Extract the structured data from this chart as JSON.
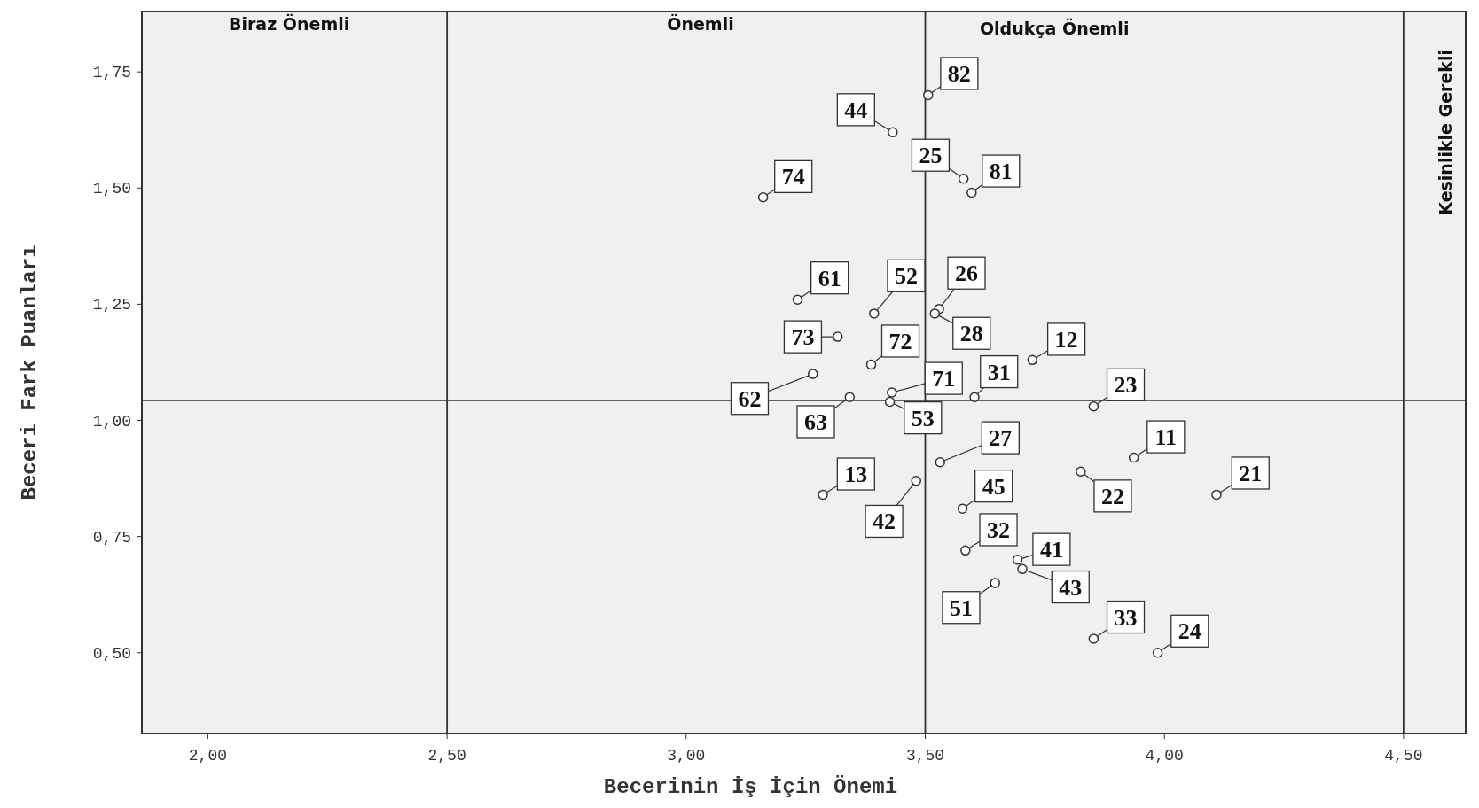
{
  "chart_data": {
    "type": "scatter",
    "xlabel": "Becerinin İş İçin Önemi",
    "ylabel": "Beceri Fark Puanları",
    "xlim": [
      1.862,
      4.63
    ],
    "ylim": [
      0.326,
      1.88
    ],
    "xticks": [
      {
        "value": 2,
        "label": "2,00"
      },
      {
        "value": 2.5,
        "label": "2,50"
      },
      {
        "value": 3,
        "label": "3,00"
      },
      {
        "value": 3.5,
        "label": "3,50"
      },
      {
        "value": 4,
        "label": "4,00"
      },
      {
        "value": 4.5,
        "label": "4,50"
      }
    ],
    "yticks": [
      {
        "value": 0.5,
        "label": "0,50"
      },
      {
        "value": 0.75,
        "label": "0,75"
      },
      {
        "value": 1,
        "label": "1,00"
      },
      {
        "value": 1.25,
        "label": "1,25"
      },
      {
        "value": 1.5,
        "label": "1,50"
      },
      {
        "value": 1.75,
        "label": "1,75"
      }
    ],
    "grid": false,
    "marker": "circle",
    "series": [
      {
        "color": "#333333",
        "x": [
          3.506,
          3.432,
          3.58,
          3.597,
          3.161,
          3.233,
          3.393,
          3.529,
          3.52,
          3.317,
          3.387,
          3.724,
          3.265,
          3.43,
          3.603,
          3.342,
          3.426,
          3.852,
          3.936,
          3.531,
          3.825,
          4.109,
          3.286,
          3.481,
          3.578,
          3.584,
          3.693,
          3.703,
          3.646,
          3.852,
          3.986
        ],
        "values": [
          1.7,
          1.62,
          1.52,
          1.49,
          1.48,
          1.26,
          1.23,
          1.24,
          1.23,
          1.18,
          1.12,
          1.13,
          1.1,
          1.06,
          1.05,
          1.05,
          1.04,
          1.03,
          0.92,
          0.91,
          0.89,
          0.84,
          0.84,
          0.87,
          0.81,
          0.72,
          0.7,
          0.68,
          0.65,
          0.53,
          0.5
        ]
      }
    ],
    "ref_lines": [
      {
        "axis": "x",
        "value": 2.5,
        "color": "#333333"
      },
      {
        "axis": "x",
        "value": 3.5,
        "color": "#333333"
      },
      {
        "axis": "x",
        "value": 4.5,
        "color": "#333333"
      },
      {
        "axis": "y",
        "value": 1.043,
        "color": "#333333"
      }
    ],
    "annotations": [
      "Biraz Önemli",
      "Önemli",
      "Oldukça Önemli",
      "Kesinlikle Gerekli",
      {
        "text": "82",
        "x": 3.506,
        "y": 1.7
      },
      {
        "text": "44",
        "x": 3.432,
        "y": 1.62
      },
      {
        "text": "25",
        "x": 3.58,
        "y": 1.52
      },
      {
        "text": "81",
        "x": 3.597,
        "y": 1.49
      },
      {
        "text": "74",
        "x": 3.161,
        "y": 1.48
      },
      {
        "text": "61",
        "x": 3.233,
        "y": 1.26
      },
      {
        "text": "52",
        "x": 3.393,
        "y": 1.23
      },
      {
        "text": "26",
        "x": 3.529,
        "y": 1.24
      },
      {
        "text": "28",
        "x": 3.52,
        "y": 1.23
      },
      {
        "text": "73",
        "x": 3.317,
        "y": 1.18
      },
      {
        "text": "72",
        "x": 3.387,
        "y": 1.12
      },
      {
        "text": "12",
        "x": 3.724,
        "y": 1.13
      },
      {
        "text": "62",
        "x": 3.265,
        "y": 1.1
      },
      {
        "text": "71",
        "x": 3.43,
        "y": 1.06
      },
      {
        "text": "31",
        "x": 3.603,
        "y": 1.05
      },
      {
        "text": "63",
        "x": 3.342,
        "y": 1.05
      },
      {
        "text": "53",
        "x": 3.426,
        "y": 1.04
      },
      {
        "text": "23",
        "x": 3.852,
        "y": 1.03
      },
      {
        "text": "11",
        "x": 3.936,
        "y": 0.92
      },
      {
        "text": "27",
        "x": 3.531,
        "y": 0.91
      },
      {
        "text": "22",
        "x": 3.825,
        "y": 0.89
      },
      {
        "text": "21",
        "x": 4.109,
        "y": 0.84
      },
      {
        "text": "13",
        "x": 3.286,
        "y": 0.84
      },
      {
        "text": "42",
        "x": 3.481,
        "y": 0.87
      },
      {
        "text": "45",
        "x": 3.578,
        "y": 0.81
      },
      {
        "text": "32",
        "x": 3.584,
        "y": 0.72
      },
      {
        "text": "41",
        "x": 3.693,
        "y": 0.7
      },
      {
        "text": "43",
        "x": 3.703,
        "y": 0.68
      },
      {
        "text": "51",
        "x": 3.646,
        "y": 0.65
      },
      {
        "text": "33",
        "x": 3.852,
        "y": 0.53
      },
      {
        "text": "24",
        "x": 3.986,
        "y": 0.5
      }
    ]
  }
}
